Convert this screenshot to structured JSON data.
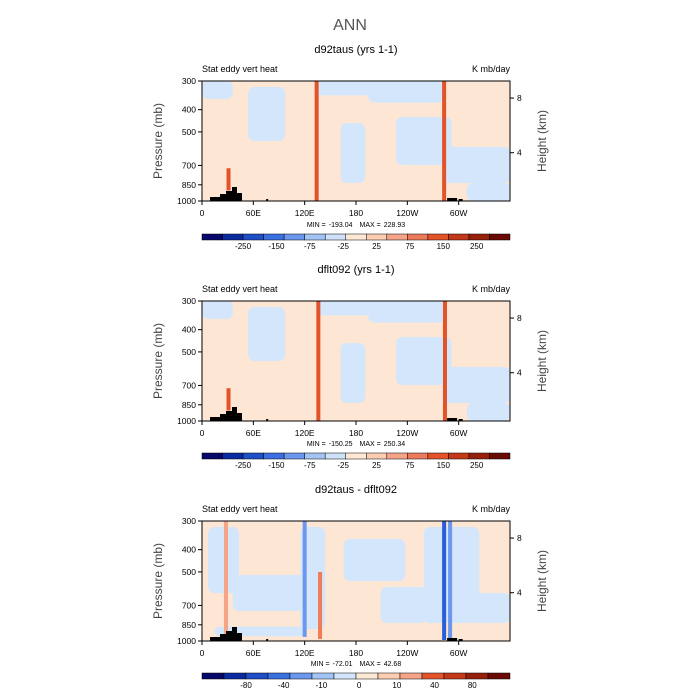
{
  "page_title": "ANN",
  "colors": {
    "background": "#ffffff",
    "base_pos": "#fde6d3",
    "base_neg": "#d4e6fb",
    "strong_pos": "#e2532a",
    "strong_neg": "#2a5fd6",
    "mountain": "#000000"
  },
  "chart_data": [
    {
      "type": "heatmap",
      "title": "d92taus (yrs 1-1)",
      "left_label": "Stat eddy vert heat",
      "right_label": "K mb/day",
      "ylabel": "Pressure (mb)",
      "ylabel_right": "Height (km)",
      "x_ticks": [
        "0",
        "60E",
        "120E",
        "180",
        "120W",
        "60W"
      ],
      "x_tick_values": [
        0,
        60,
        120,
        180,
        240,
        300
      ],
      "xlim": [
        0,
        360
      ],
      "y_ticks": [
        "300",
        "400",
        "500",
        "700",
        "850",
        "1000"
      ],
      "y_tick_values": [
        300,
        400,
        500,
        700,
        850,
        1000
      ],
      "ylim": [
        1000,
        300
      ],
      "height_ticks": [
        "8",
        "4"
      ],
      "height_tick_values": [
        8,
        4
      ],
      "stats": {
        "min_label": "MIN =",
        "min": "-193.04",
        "max_label": "MAX =",
        "max": "228.93"
      },
      "colorbar": {
        "tick_labels": [
          "-250",
          "-150",
          "-75",
          "-25",
          "25",
          "75",
          "150",
          "250"
        ],
        "colors": [
          "#08086a",
          "#0b2aa0",
          "#1f4fc7",
          "#3a6fe0",
          "#6b98ee",
          "#a2c4f5",
          "#cfe1fa",
          "#fde8d6",
          "#fbcdb1",
          "#f5a488",
          "#ed7a5c",
          "#e2532a",
          "#c23818",
          "#97200c",
          "#6a0a05"
        ]
      },
      "spikes": [
        {
          "lon": 31,
          "p_top": 720,
          "p_bottom": 900,
          "value": 140
        },
        {
          "lon": 134,
          "p_top": 300,
          "p_bottom": 1000,
          "value": 200
        },
        {
          "lon": 283,
          "p_top": 300,
          "p_bottom": 1000,
          "value": 200
        }
      ]
    },
    {
      "type": "heatmap",
      "title": "dflt092 (yrs 1-1)",
      "left_label": "Stat eddy vert heat",
      "right_label": "K mb/day",
      "ylabel": "Pressure (mb)",
      "ylabel_right": "Height (km)",
      "x_ticks": [
        "0",
        "60E",
        "120E",
        "180",
        "120W",
        "60W"
      ],
      "x_tick_values": [
        0,
        60,
        120,
        180,
        240,
        300
      ],
      "xlim": [
        0,
        360
      ],
      "y_ticks": [
        "300",
        "400",
        "500",
        "700",
        "850",
        "1000"
      ],
      "y_tick_values": [
        300,
        400,
        500,
        700,
        850,
        1000
      ],
      "ylim": [
        1000,
        300
      ],
      "height_ticks": [
        "8",
        "4"
      ],
      "height_tick_values": [
        8,
        4
      ],
      "stats": {
        "min_label": "MIN =",
        "min": "-150.25",
        "max_label": "MAX =",
        "max": "250.34"
      },
      "colorbar": {
        "tick_labels": [
          "-250",
          "-150",
          "-75",
          "-25",
          "25",
          "75",
          "150",
          "250"
        ],
        "colors": [
          "#08086a",
          "#0b2aa0",
          "#1f4fc7",
          "#3a6fe0",
          "#6b98ee",
          "#a2c4f5",
          "#cfe1fa",
          "#fde8d6",
          "#fbcdb1",
          "#f5a488",
          "#ed7a5c",
          "#e2532a",
          "#c23818",
          "#97200c",
          "#6a0a05"
        ]
      },
      "spikes": [
        {
          "lon": 31,
          "p_top": 720,
          "p_bottom": 900,
          "value": 140
        },
        {
          "lon": 136,
          "p_top": 300,
          "p_bottom": 1000,
          "value": 200
        },
        {
          "lon": 284,
          "p_top": 300,
          "p_bottom": 1000,
          "value": 200
        }
      ]
    },
    {
      "type": "heatmap",
      "title": "d92taus - dflt092",
      "left_label": "Stat eddy vert heat",
      "right_label": "K mb/day",
      "ylabel": "Pressure (mb)",
      "ylabel_right": "Height (km)",
      "x_ticks": [
        "0",
        "60E",
        "120E",
        "180",
        "120W",
        "60W"
      ],
      "x_tick_values": [
        0,
        60,
        120,
        180,
        240,
        300
      ],
      "xlim": [
        0,
        360
      ],
      "y_ticks": [
        "300",
        "400",
        "500",
        "700",
        "850",
        "1000"
      ],
      "y_tick_values": [
        300,
        400,
        500,
        700,
        850,
        1000
      ],
      "ylim": [
        1000,
        300
      ],
      "height_ticks": [
        "8",
        "4"
      ],
      "height_tick_values": [
        8,
        4
      ],
      "stats": {
        "min_label": "MIN =",
        "min": "-72.01",
        "max_label": "MAX =",
        "max": "42.68"
      },
      "colorbar": {
        "tick_labels": [
          "-80",
          "-40",
          "-10",
          "0",
          "10",
          "40",
          "80"
        ],
        "colors": [
          "#08086a",
          "#0b2aa0",
          "#1f4fc7",
          "#3a6fe0",
          "#6b98ee",
          "#a2c4f5",
          "#d4e6fb",
          "#fde8d6",
          "#fbcdb1",
          "#f5a488",
          "#e2532a",
          "#c23818",
          "#97200c",
          "#6a0a05"
        ]
      },
      "spikes": [
        {
          "lon": 28,
          "p_top": 300,
          "p_bottom": 950,
          "value": 20
        },
        {
          "lon": 120,
          "p_top": 300,
          "p_bottom": 960,
          "value": -20
        },
        {
          "lon": 138,
          "p_top": 500,
          "p_bottom": 980,
          "value": 30
        },
        {
          "lon": 283,
          "p_top": 300,
          "p_bottom": 990,
          "value": -60
        },
        {
          "lon": 290,
          "p_top": 300,
          "p_bottom": 980,
          "value": -20
        }
      ]
    }
  ]
}
